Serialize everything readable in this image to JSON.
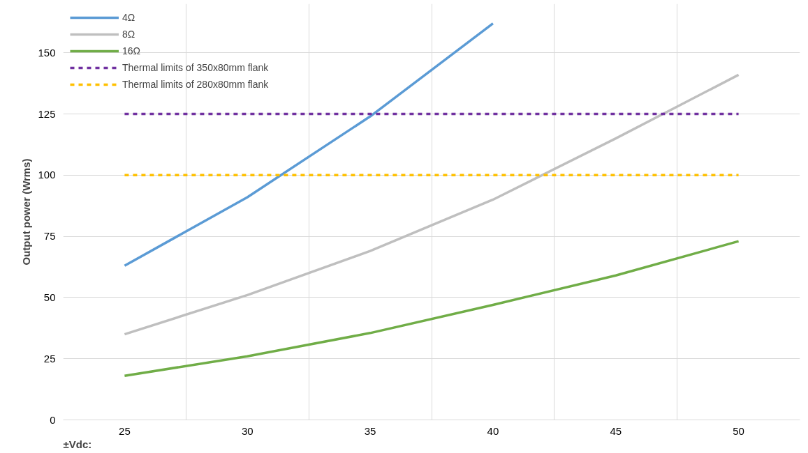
{
  "chart_data": {
    "type": "line",
    "xlabel": "±Vdc:",
    "ylabel": "Output power (Wrms)",
    "categories": [
      "25",
      "30",
      "35",
      "40",
      "45",
      "50"
    ],
    "ylim": [
      0,
      170
    ],
    "yticks": [
      0,
      25,
      50,
      75,
      100,
      125,
      150
    ],
    "grid": true,
    "legend": "top left",
    "line_style": "solid",
    "marker": "none",
    "series": [
      {
        "name": "4Ω",
        "color": "#5b9bd5",
        "values": [
          63,
          91,
          124,
          162,
          null,
          null
        ]
      },
      {
        "name": "8Ω",
        "color": "#bfbfbf",
        "values": [
          35,
          51,
          69,
          90,
          115,
          141
        ]
      },
      {
        "name": "16Ω",
        "color": "#70ad47",
        "values": [
          18,
          26,
          35.5,
          47,
          59,
          73
        ]
      },
      {
        "name": "Thermal limits of 350x80mm flank",
        "color": "#7030a0",
        "line_style": "dashed",
        "values": [
          125,
          125,
          125,
          125,
          125,
          125
        ]
      },
      {
        "name": "Thermal limits of 280x80mm flank",
        "color": "#ffc000",
        "line_style": "dashed",
        "values": [
          100,
          100,
          100,
          100,
          100,
          100
        ]
      }
    ]
  }
}
